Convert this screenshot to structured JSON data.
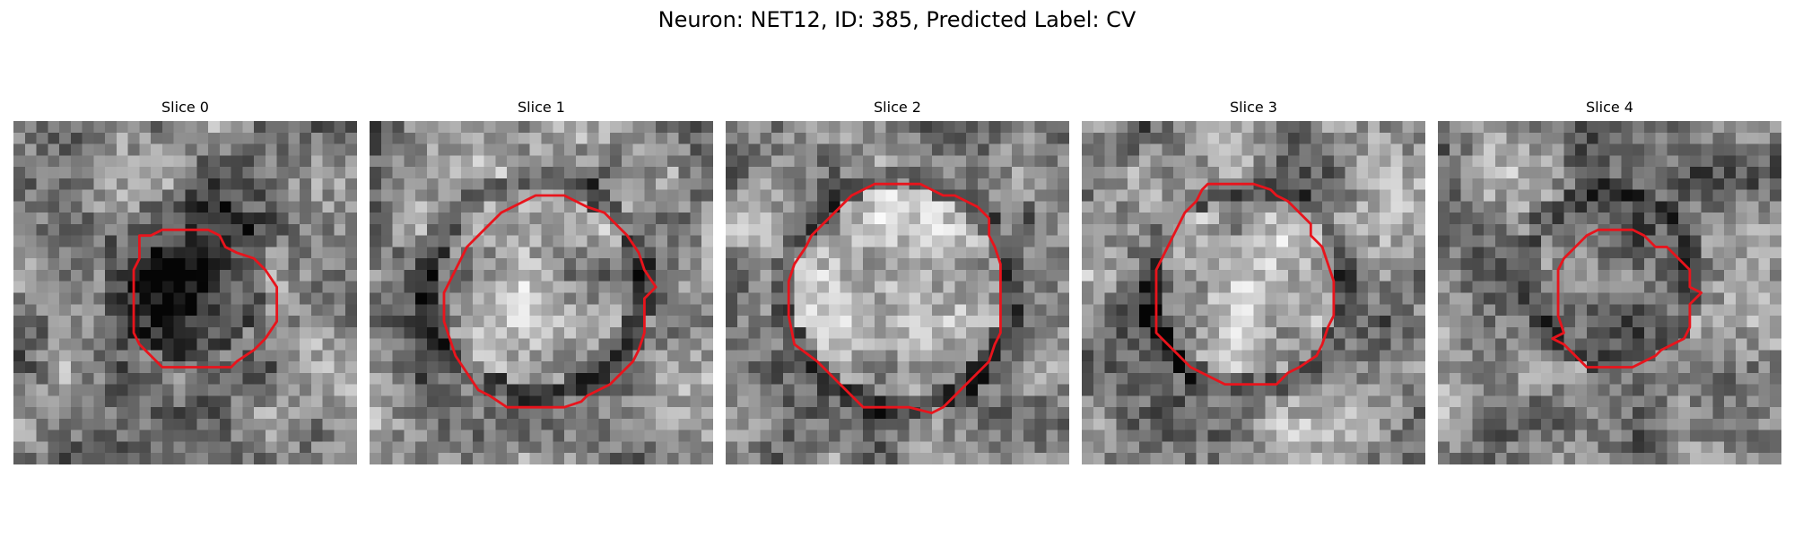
{
  "figure": {
    "title": "Neuron: NET12, ID: 385, Predicted Label: CV"
  },
  "contour_color": "#e8141c",
  "grid_size": 30,
  "panels": [
    {
      "title": "Slice 0",
      "blob": {
        "cx": 15,
        "cy": 13.5,
        "r": 5.5,
        "contrast": -0.55
      },
      "contour": [
        [
          11,
          10
        ],
        [
          12,
          10
        ],
        [
          13,
          9.5
        ],
        [
          14,
          9.5
        ],
        [
          15,
          9.5
        ],
        [
          16,
          9.5
        ],
        [
          17,
          9.5
        ],
        [
          18,
          10
        ],
        [
          18.5,
          11
        ],
        [
          19.5,
          11.5
        ],
        [
          21,
          12
        ],
        [
          22,
          13
        ],
        [
          23,
          14.5
        ],
        [
          23,
          16
        ],
        [
          23,
          17.5
        ],
        [
          22,
          19
        ],
        [
          21,
          20
        ],
        [
          19.5,
          21
        ],
        [
          19,
          21.5
        ],
        [
          17,
          21.5
        ],
        [
          15,
          21.5
        ],
        [
          13,
          21.5
        ],
        [
          12,
          20.5
        ],
        [
          11,
          19.5
        ],
        [
          10.5,
          18.5
        ],
        [
          10.5,
          17
        ],
        [
          10.5,
          15
        ],
        [
          10.5,
          13
        ],
        [
          11,
          12
        ]
      ]
    },
    {
      "title": "Slice 1",
      "blob": {
        "cx": 14.5,
        "cy": 14.5,
        "r": 8.5,
        "contrast": 0.25
      },
      "contour": [
        [
          11.5,
          8
        ],
        [
          12.5,
          7.5
        ],
        [
          13.5,
          7
        ],
        [
          14.5,
          6.5
        ],
        [
          17,
          6.5
        ],
        [
          18,
          7
        ],
        [
          19,
          7.5
        ],
        [
          20.5,
          8
        ],
        [
          21.5,
          9
        ],
        [
          22.5,
          10
        ],
        [
          23.5,
          11.5
        ],
        [
          24,
          13
        ],
        [
          25,
          14.5
        ],
        [
          24,
          15.5
        ],
        [
          24,
          17
        ],
        [
          24,
          18.5
        ],
        [
          23.5,
          20
        ],
        [
          23,
          21
        ],
        [
          22,
          22
        ],
        [
          21,
          23
        ],
        [
          20,
          23.5
        ],
        [
          19,
          24
        ],
        [
          18.5,
          24.5
        ],
        [
          17,
          25
        ],
        [
          14.5,
          25
        ],
        [
          12,
          25
        ],
        [
          10.5,
          24
        ],
        [
          9.5,
          23.5
        ],
        [
          8.5,
          22
        ],
        [
          7.5,
          20.5
        ],
        [
          7,
          19
        ],
        [
          6.5,
          17.5
        ],
        [
          6.5,
          15
        ],
        [
          7,
          14
        ],
        [
          7.5,
          13
        ],
        [
          8,
          12
        ],
        [
          8.5,
          11
        ],
        [
          9.5,
          10
        ],
        [
          10.5,
          9
        ]
      ]
    },
    {
      "title": "Slice 2",
      "blob": {
        "cx": 15,
        "cy": 15,
        "r": 9,
        "contrast": 0.35
      },
      "contour": [
        [
          12,
          6
        ],
        [
          13,
          5.5
        ],
        [
          14,
          5.5
        ],
        [
          17,
          5.5
        ],
        [
          18,
          6
        ],
        [
          19,
          6.5
        ],
        [
          20,
          6.5
        ],
        [
          21,
          7
        ],
        [
          22,
          7.5
        ],
        [
          23,
          8.5
        ],
        [
          23,
          10
        ],
        [
          23.5,
          11
        ],
        [
          24,
          12.5
        ],
        [
          24,
          14
        ],
        [
          24,
          15.5
        ],
        [
          24,
          17
        ],
        [
          24,
          18.5
        ],
        [
          23.5,
          19.5
        ],
        [
          23,
          21
        ],
        [
          22,
          22
        ],
        [
          21,
          23
        ],
        [
          20,
          24
        ],
        [
          19,
          25
        ],
        [
          18,
          25.5
        ],
        [
          16,
          25
        ],
        [
          14,
          25
        ],
        [
          12,
          25
        ],
        [
          11,
          24
        ],
        [
          10,
          23
        ],
        [
          9,
          22
        ],
        [
          8,
          21
        ],
        [
          6,
          19.5
        ],
        [
          5.5,
          17
        ],
        [
          5.5,
          14
        ],
        [
          6,
          12.5
        ],
        [
          7,
          11
        ],
        [
          7.5,
          10
        ],
        [
          8.5,
          9
        ],
        [
          10,
          7.5
        ],
        [
          11,
          6.5
        ]
      ]
    },
    {
      "title": "Slice 3",
      "blob": {
        "cx": 14.5,
        "cy": 14.5,
        "r": 8,
        "contrast": 0.3
      },
      "contour": [
        [
          11,
          5.5
        ],
        [
          13,
          5.5
        ],
        [
          15,
          5.5
        ],
        [
          16.5,
          6
        ],
        [
          17,
          6.5
        ],
        [
          18,
          7
        ],
        [
          19,
          8
        ],
        [
          20,
          9
        ],
        [
          20,
          10
        ],
        [
          21,
          11
        ],
        [
          21.5,
          12.5
        ],
        [
          22,
          14
        ],
        [
          22,
          16
        ],
        [
          22,
          17
        ],
        [
          21.5,
          18
        ],
        [
          21,
          19.5
        ],
        [
          20.5,
          20.5
        ],
        [
          19,
          21.5
        ],
        [
          18,
          22
        ],
        [
          17,
          23
        ],
        [
          16,
          23
        ],
        [
          15,
          23
        ],
        [
          13,
          23
        ],
        [
          12.5,
          23
        ],
        [
          11.5,
          22.5
        ],
        [
          10.5,
          22
        ],
        [
          9.5,
          21.5
        ],
        [
          8.5,
          20.5
        ],
        [
          7.5,
          19.5
        ],
        [
          6.5,
          18.5
        ],
        [
          6.5,
          16
        ],
        [
          6.5,
          14
        ],
        [
          6.5,
          13
        ],
        [
          7,
          12
        ],
        [
          7.5,
          11
        ],
        [
          8,
          10
        ],
        [
          8.5,
          9
        ],
        [
          9,
          8
        ],
        [
          10,
          7
        ],
        [
          10.5,
          6
        ]
      ]
    },
    {
      "title": "Slice 4",
      "blob": {
        "cx": 15,
        "cy": 13.5,
        "r": 6.5,
        "contrast": -0.12
      },
      "contour": [
        [
          14,
          9.5
        ],
        [
          15,
          9.5
        ],
        [
          16,
          9.5
        ],
        [
          17,
          9.5
        ],
        [
          18,
          10
        ],
        [
          19,
          11
        ],
        [
          20,
          11
        ],
        [
          21,
          12
        ],
        [
          22,
          13
        ],
        [
          22,
          14.5
        ],
        [
          23,
          15
        ],
        [
          22,
          16
        ],
        [
          22,
          17
        ],
        [
          22,
          18
        ],
        [
          21.5,
          19
        ],
        [
          20.5,
          19.5
        ],
        [
          19.5,
          20
        ],
        [
          19,
          20.5
        ],
        [
          18,
          21
        ],
        [
          17,
          21.5
        ],
        [
          15,
          21.5
        ],
        [
          13,
          21.5
        ],
        [
          12,
          20.5
        ],
        [
          11.5,
          20
        ],
        [
          11,
          19.5
        ],
        [
          10,
          19
        ],
        [
          11,
          18.5
        ],
        [
          10.5,
          17
        ],
        [
          10.5,
          15
        ],
        [
          10.5,
          13
        ],
        [
          11,
          12
        ],
        [
          12,
          11
        ],
        [
          13,
          10
        ]
      ]
    }
  ]
}
